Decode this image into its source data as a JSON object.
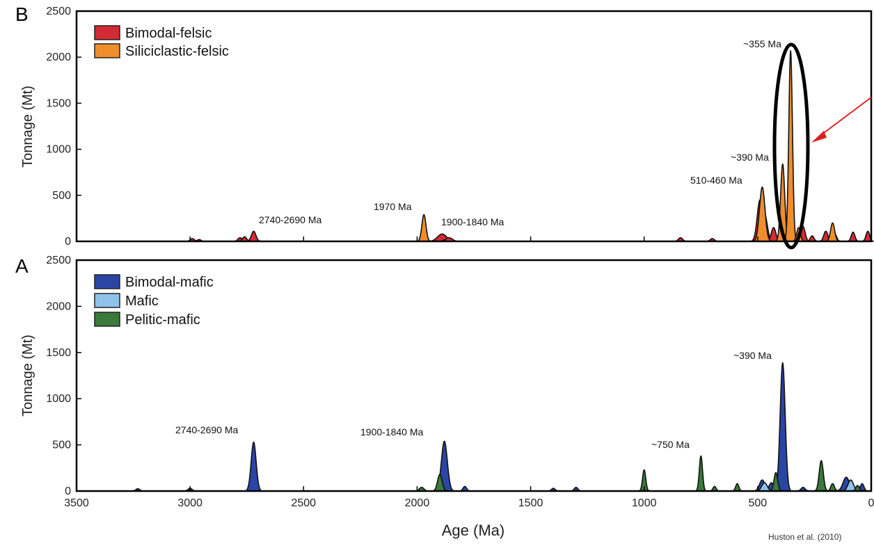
{
  "chart_data": [
    {
      "panel": "B",
      "type": "area",
      "title": "",
      "xlabel": "",
      "ylabel": "Tonnage (Mt)",
      "xlim": [
        3500,
        0
      ],
      "ylim": [
        0,
        2500
      ],
      "yticks": [
        0,
        500,
        1000,
        1500,
        2000,
        2500
      ],
      "legend": "top-left",
      "series": [
        {
          "name": "Bimodal-felsic",
          "color": "#d42a35",
          "peaks": [
            [
              2990,
              30,
              9
            ],
            [
              2960,
              20,
              8
            ],
            [
              2780,
              40,
              9
            ],
            [
              2760,
              50,
              9
            ],
            [
              2720,
              110,
              10
            ],
            [
              1890,
              80,
              20
            ],
            [
              1860,
              40,
              15
            ],
            [
              840,
              40,
              9
            ],
            [
              700,
              30,
              9
            ],
            [
              490,
              450,
              12
            ],
            [
              470,
              300,
              12
            ],
            [
              430,
              150,
              10
            ],
            [
              380,
              120,
              10
            ],
            [
              340,
              60,
              9
            ],
            [
              300,
              160,
              9
            ],
            [
              260,
              60,
              8
            ],
            [
              200,
              110,
              9
            ],
            [
              160,
              80,
              8
            ],
            [
              80,
              100,
              8
            ],
            [
              15,
              110,
              8
            ]
          ]
        },
        {
          "name": "Siliciclastic-felsic",
          "color": "#f08d2c",
          "peaks": [
            [
              1970,
              290,
              9
            ],
            [
              480,
              590,
              12
            ],
            [
              390,
              840,
              9
            ],
            [
              355,
              2070,
              8
            ],
            [
              320,
              150,
              8
            ],
            [
              170,
              200,
              9
            ]
          ]
        }
      ],
      "annotations": [
        "~355 Ma",
        "~390 Ma",
        "510-460 Ma",
        "1970 Ma",
        "1900-1840 Ma",
        "2740-2690 Ma"
      ]
    },
    {
      "panel": "A",
      "type": "area",
      "title": "",
      "xlabel": "Age (Ma)",
      "ylabel": "Tonnage (Mt)",
      "xlim": [
        3500,
        0
      ],
      "ylim": [
        0,
        2500
      ],
      "xticks": [
        3500,
        3000,
        2500,
        2000,
        1500,
        1000,
        500,
        0
      ],
      "yticks": [
        0,
        500,
        1000,
        1500,
        2000,
        2500
      ],
      "legend": "top-left",
      "series": [
        {
          "name": "Bimodal-mafic",
          "color": "#2b45a4",
          "peaks": [
            [
              3230,
              25,
              9
            ],
            [
              3000,
              30,
              9
            ],
            [
              2720,
              530,
              11
            ],
            [
              1880,
              540,
              13
            ],
            [
              1790,
              50,
              8
            ],
            [
              1400,
              30,
              8
            ],
            [
              1300,
              40,
              8
            ],
            [
              480,
              120,
              12
            ],
            [
              440,
              90,
              10
            ],
            [
              390,
              1390,
              11
            ],
            [
              300,
              40,
              9
            ],
            [
              110,
              150,
              14
            ],
            [
              40,
              80,
              8
            ]
          ]
        },
        {
          "name": "Mafic",
          "color": "#8fc3ea",
          "peaks": [
            [
              470,
              90,
              12
            ],
            [
              90,
              120,
              12
            ]
          ]
        },
        {
          "name": "Pelitic-mafic",
          "color": "#3a7a3a",
          "peaks": [
            [
              1980,
              40,
              10
            ],
            [
              1900,
              180,
              10
            ],
            [
              1000,
              230,
              7
            ],
            [
              750,
              380,
              7
            ],
            [
              690,
              50,
              7
            ],
            [
              590,
              80,
              7
            ],
            [
              420,
              200,
              8
            ],
            [
              220,
              330,
              9
            ],
            [
              170,
              80,
              8
            ],
            [
              60,
              60,
              8
            ]
          ]
        }
      ],
      "annotations": [
        "~390 Ma",
        "~750 Ma",
        "1900-1840 Ma",
        "2740-2690 Ma"
      ]
    }
  ],
  "figure": {
    "panel_b_letter": "B",
    "panel_a_letter": "A",
    "credit": "Huston et al. (2010)",
    "highlight": {
      "ellipse_color": "#000000",
      "arrow_color": "#e02020",
      "target_label": "~355 Ma"
    }
  },
  "panel_b": {
    "ylabel": "Tonnage (Mt)",
    "legend": [
      "Bimodal-felsic",
      "Siliciclastic-felsic"
    ],
    "ann_355": "~355 Ma",
    "ann_390": "~390 Ma",
    "ann_510": "510-460 Ma",
    "ann_1970": "1970 Ma",
    "ann_1900": "1900-1840 Ma",
    "ann_2740": "2740-2690 Ma"
  },
  "panel_a": {
    "ylabel": "Tonnage (Mt)",
    "xlabel": "Age (Ma)",
    "legend": [
      "Bimodal-mafic",
      "Mafic",
      "Pelitic-mafic"
    ],
    "ann_390": "~390 Ma",
    "ann_750": "~750 Ma",
    "ann_1900": "1900-1840 Ma",
    "ann_2740": "2740-2690 Ma"
  }
}
